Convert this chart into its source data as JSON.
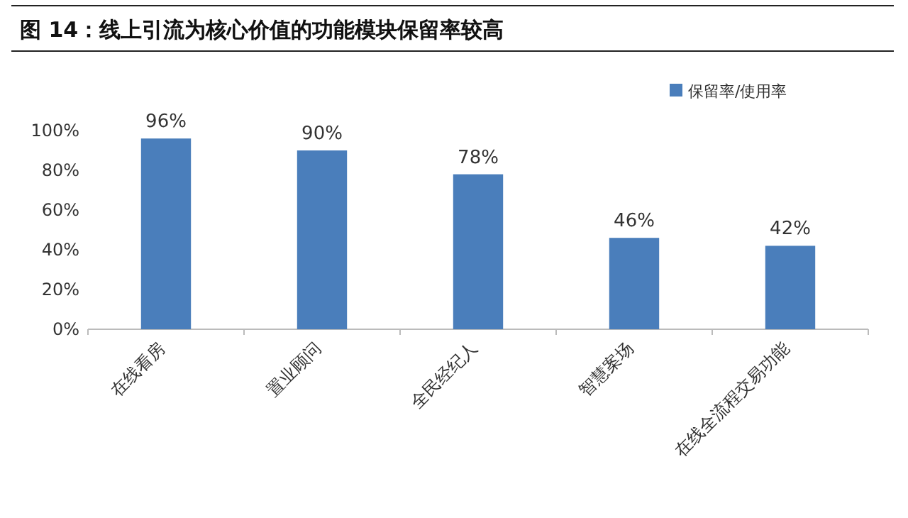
{
  "chart_data": {
    "type": "bar",
    "title": "图 14：线上引流为核心价值的功能模块保留率较高",
    "categories": [
      "在线看房",
      "置业顾问",
      "全民经纪人",
      "智慧案场",
      "在线全流程交易功能"
    ],
    "series": [
      {
        "name": "保留率/使用率",
        "color": "#4a7ebb",
        "values": [
          96,
          90,
          78,
          46,
          42
        ]
      }
    ],
    "ylim": [
      0,
      100
    ],
    "yticks": [
      {
        "value": 0,
        "label": "0%"
      },
      {
        "value": 20,
        "label": "20%"
      },
      {
        "value": 40,
        "label": "40%"
      },
      {
        "value": 60,
        "label": "60%"
      },
      {
        "value": 80,
        "label": "80%"
      },
      {
        "value": 100,
        "label": "100%"
      }
    ],
    "value_labels": [
      "96%",
      "90%",
      "78%",
      "46%",
      "42%"
    ],
    "legend": "top right",
    "grid": false
  }
}
